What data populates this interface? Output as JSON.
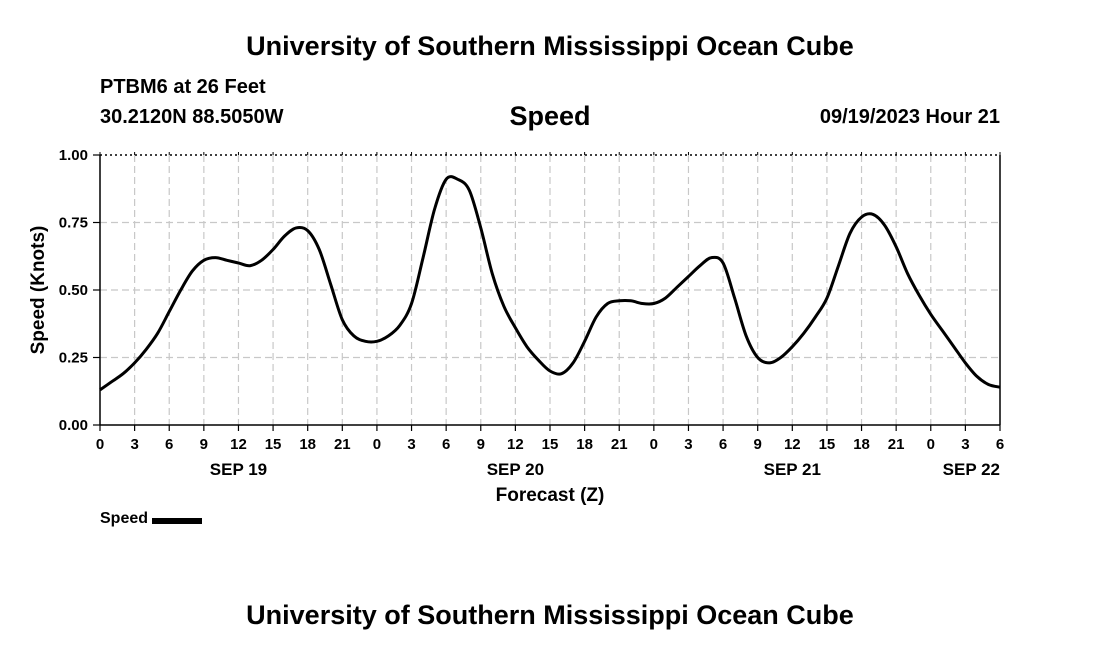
{
  "header": {
    "title": "University of Southern Mississippi Ocean Cube",
    "station": "PTBM6 at 26 Feet",
    "coordinates": "30.2120N  88.5050W",
    "variable": "Speed",
    "datetime": "09/19/2023 Hour 21"
  },
  "footer": {
    "title": "University of Southern Mississippi Ocean Cube"
  },
  "legend": {
    "label": "Speed"
  },
  "chart_data": {
    "type": "line",
    "title": "Speed",
    "xlabel": "Forecast (Z)",
    "ylabel": "Speed (Knots)",
    "x_unit": "hours from 00Z SEP 19",
    "xlim": [
      0,
      78
    ],
    "ylim": [
      0,
      1
    ],
    "grid": true,
    "y_ticks": [
      "0.00",
      "0.25",
      "0.50",
      "0.75",
      "1.00"
    ],
    "x_ticks": [
      "0",
      "3",
      "6",
      "9",
      "12",
      "15",
      "18",
      "21",
      "0",
      "3",
      "6",
      "9",
      "12",
      "15",
      "18",
      "21",
      "0",
      "3",
      "6",
      "9",
      "12",
      "15",
      "18",
      "21",
      "0",
      "3",
      "6"
    ],
    "date_labels": [
      {
        "label": "SEP 19",
        "hour": 12
      },
      {
        "label": "SEP 20",
        "hour": 36
      },
      {
        "label": "SEP 21",
        "hour": 60
      },
      {
        "label": "SEP 22",
        "hour": 78
      }
    ],
    "series": [
      {
        "name": "Speed",
        "color": "#000000",
        "x": [
          0,
          1,
          2,
          3,
          4,
          5,
          6,
          7,
          8,
          9,
          10,
          11,
          12,
          13,
          14,
          15,
          16,
          17,
          18,
          19,
          20,
          21,
          22,
          23,
          24,
          25,
          26,
          27,
          28,
          29,
          30,
          31,
          32,
          33,
          34,
          35,
          36,
          37,
          38,
          39,
          40,
          41,
          42,
          43,
          44,
          45,
          46,
          47,
          48,
          49,
          50,
          51,
          52,
          53,
          54,
          55,
          56,
          57,
          58,
          59,
          60,
          61,
          62,
          63,
          64,
          65,
          66,
          67,
          68,
          69,
          70,
          71,
          72,
          73,
          74,
          75,
          76,
          77,
          78
        ],
        "values": [
          0.13,
          0.16,
          0.19,
          0.23,
          0.28,
          0.34,
          0.42,
          0.5,
          0.57,
          0.61,
          0.62,
          0.61,
          0.6,
          0.59,
          0.61,
          0.65,
          0.7,
          0.73,
          0.72,
          0.65,
          0.52,
          0.39,
          0.33,
          0.31,
          0.31,
          0.33,
          0.37,
          0.45,
          0.62,
          0.8,
          0.91,
          0.91,
          0.87,
          0.73,
          0.56,
          0.44,
          0.36,
          0.29,
          0.24,
          0.2,
          0.19,
          0.23,
          0.31,
          0.4,
          0.45,
          0.46,
          0.46,
          0.45,
          0.45,
          0.47,
          0.51,
          0.55,
          0.59,
          0.62,
          0.6,
          0.47,
          0.33,
          0.25,
          0.23,
          0.25,
          0.29,
          0.34,
          0.4,
          0.47,
          0.59,
          0.71,
          0.77,
          0.78,
          0.74,
          0.66,
          0.56,
          0.48,
          0.41,
          0.35,
          0.29,
          0.23,
          0.18,
          0.15,
          0.14
        ]
      }
    ]
  }
}
